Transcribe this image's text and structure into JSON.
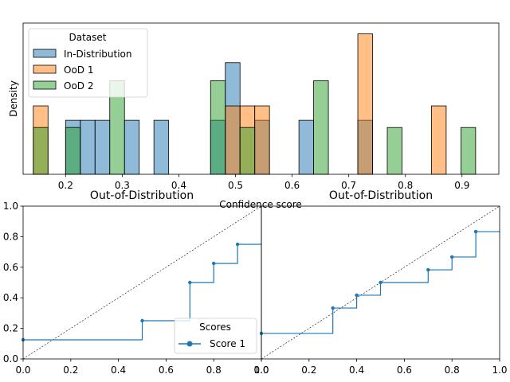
{
  "chart_data": [
    {
      "type": "bar",
      "kind": "histogram",
      "xlabel": "Confidence score",
      "ylabel": "Density",
      "xlim": [
        0.125,
        0.965
      ],
      "ylim": [
        0,
        4.2
      ],
      "xticks": [
        "0.2",
        "0.3",
        "0.4",
        "0.5",
        "0.6",
        "0.7",
        "0.8",
        "0.9"
      ],
      "bin_width": 0.026,
      "legend": {
        "title": "Dataset",
        "position": "top-left",
        "entries": [
          "In-Distribution",
          "OoD 1",
          "OoD 2"
        ]
      },
      "series": [
        {
          "name": "In-Distribution",
          "color": "#1f77b4",
          "bins": [
            {
              "x": 0.2,
              "density": 1.5
            },
            {
              "x": 0.226,
              "density": 1.5
            },
            {
              "x": 0.252,
              "density": 1.5
            },
            {
              "x": 0.304,
              "density": 1.5
            },
            {
              "x": 0.356,
              "density": 1.5
            },
            {
              "x": 0.456,
              "density": 1.5
            },
            {
              "x": 0.482,
              "density": 3.1
            },
            {
              "x": 0.534,
              "density": 1.5
            },
            {
              "x": 0.612,
              "density": 1.5
            },
            {
              "x": 0.716,
              "density": 1.5
            }
          ]
        },
        {
          "name": "OoD 1",
          "color": "#ff7f0e",
          "bins": [
            {
              "x": 0.143,
              "density": 1.9
            },
            {
              "x": 0.482,
              "density": 1.9
            },
            {
              "x": 0.508,
              "density": 1.9
            },
            {
              "x": 0.534,
              "density": 1.9
            },
            {
              "x": 0.716,
              "density": 3.9
            },
            {
              "x": 0.846,
              "density": 1.9
            }
          ]
        },
        {
          "name": "OoD 2",
          "color": "#2ca02c",
          "bins": [
            {
              "x": 0.143,
              "density": 1.3
            },
            {
              "x": 0.2,
              "density": 1.3
            },
            {
              "x": 0.278,
              "density": 2.6
            },
            {
              "x": 0.456,
              "density": 2.6
            },
            {
              "x": 0.508,
              "density": 1.3
            },
            {
              "x": 0.638,
              "density": 2.6
            },
            {
              "x": 0.768,
              "density": 1.3
            },
            {
              "x": 0.898,
              "density": 1.3
            }
          ]
        }
      ]
    },
    {
      "type": "line",
      "title": "Out-of-Distribution",
      "xlim": [
        0,
        1
      ],
      "ylim": [
        0,
        1
      ],
      "xticks": [
        "0.0",
        "0.2",
        "0.4",
        "0.6",
        "0.8",
        "1.0"
      ],
      "yticks": [
        "0.0",
        "0.2",
        "0.4",
        "0.6",
        "0.8",
        "1.0"
      ],
      "diagonal": true,
      "legend": {
        "title": "Scores",
        "position": "lower-right"
      },
      "series": [
        {
          "name": "Score 1",
          "color": "#1f77b4",
          "step": "post",
          "x": [
            0.0,
            0.5,
            0.7,
            0.8,
            0.9,
            1.0
          ],
          "y": [
            0.125,
            0.25,
            0.5,
            0.625,
            0.75,
            0.75
          ]
        }
      ]
    },
    {
      "type": "line",
      "title": "Out-of-Distribution",
      "xlim": [
        0,
        1
      ],
      "ylim": [
        0,
        1
      ],
      "xticks": [
        "0.0",
        "0.2",
        "0.4",
        "0.6",
        "0.8",
        "1.0"
      ],
      "diagonal": true,
      "series": [
        {
          "color": "#1f77b4",
          "step": "post",
          "x": [
            0.0,
            0.3,
            0.4,
            0.5,
            0.7,
            0.8,
            0.9,
            1.0
          ],
          "y": [
            0.167,
            0.333,
            0.417,
            0.5,
            0.583,
            0.667,
            0.833,
            0.833
          ]
        }
      ]
    }
  ]
}
